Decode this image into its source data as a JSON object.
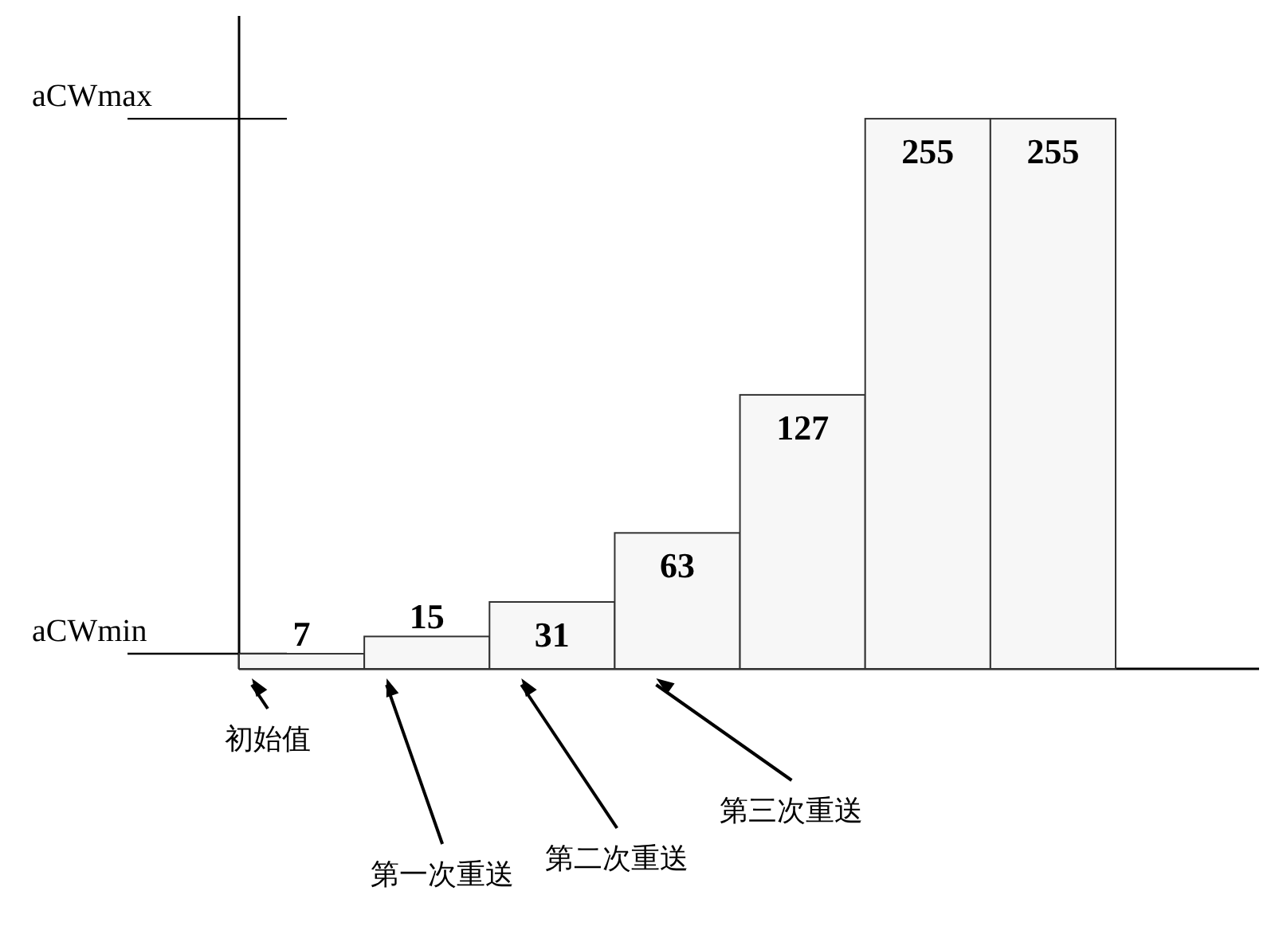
{
  "chart_data": {
    "type": "bar",
    "categories": [
      null,
      null,
      null,
      null,
      null,
      null,
      null
    ],
    "values": [
      7,
      15,
      31,
      63,
      127,
      255,
      255
    ],
    "color": "#f7f7f7",
    "data_labels": true,
    "ref_lines": [
      {
        "axis": "y",
        "value": 7,
        "label": "aCWmin"
      },
      {
        "axis": "y",
        "value": 255,
        "label": "aCWmax"
      }
    ],
    "annotations": [
      "初始值",
      "第一次重送",
      "第二次重送",
      "第三次重送"
    ]
  }
}
